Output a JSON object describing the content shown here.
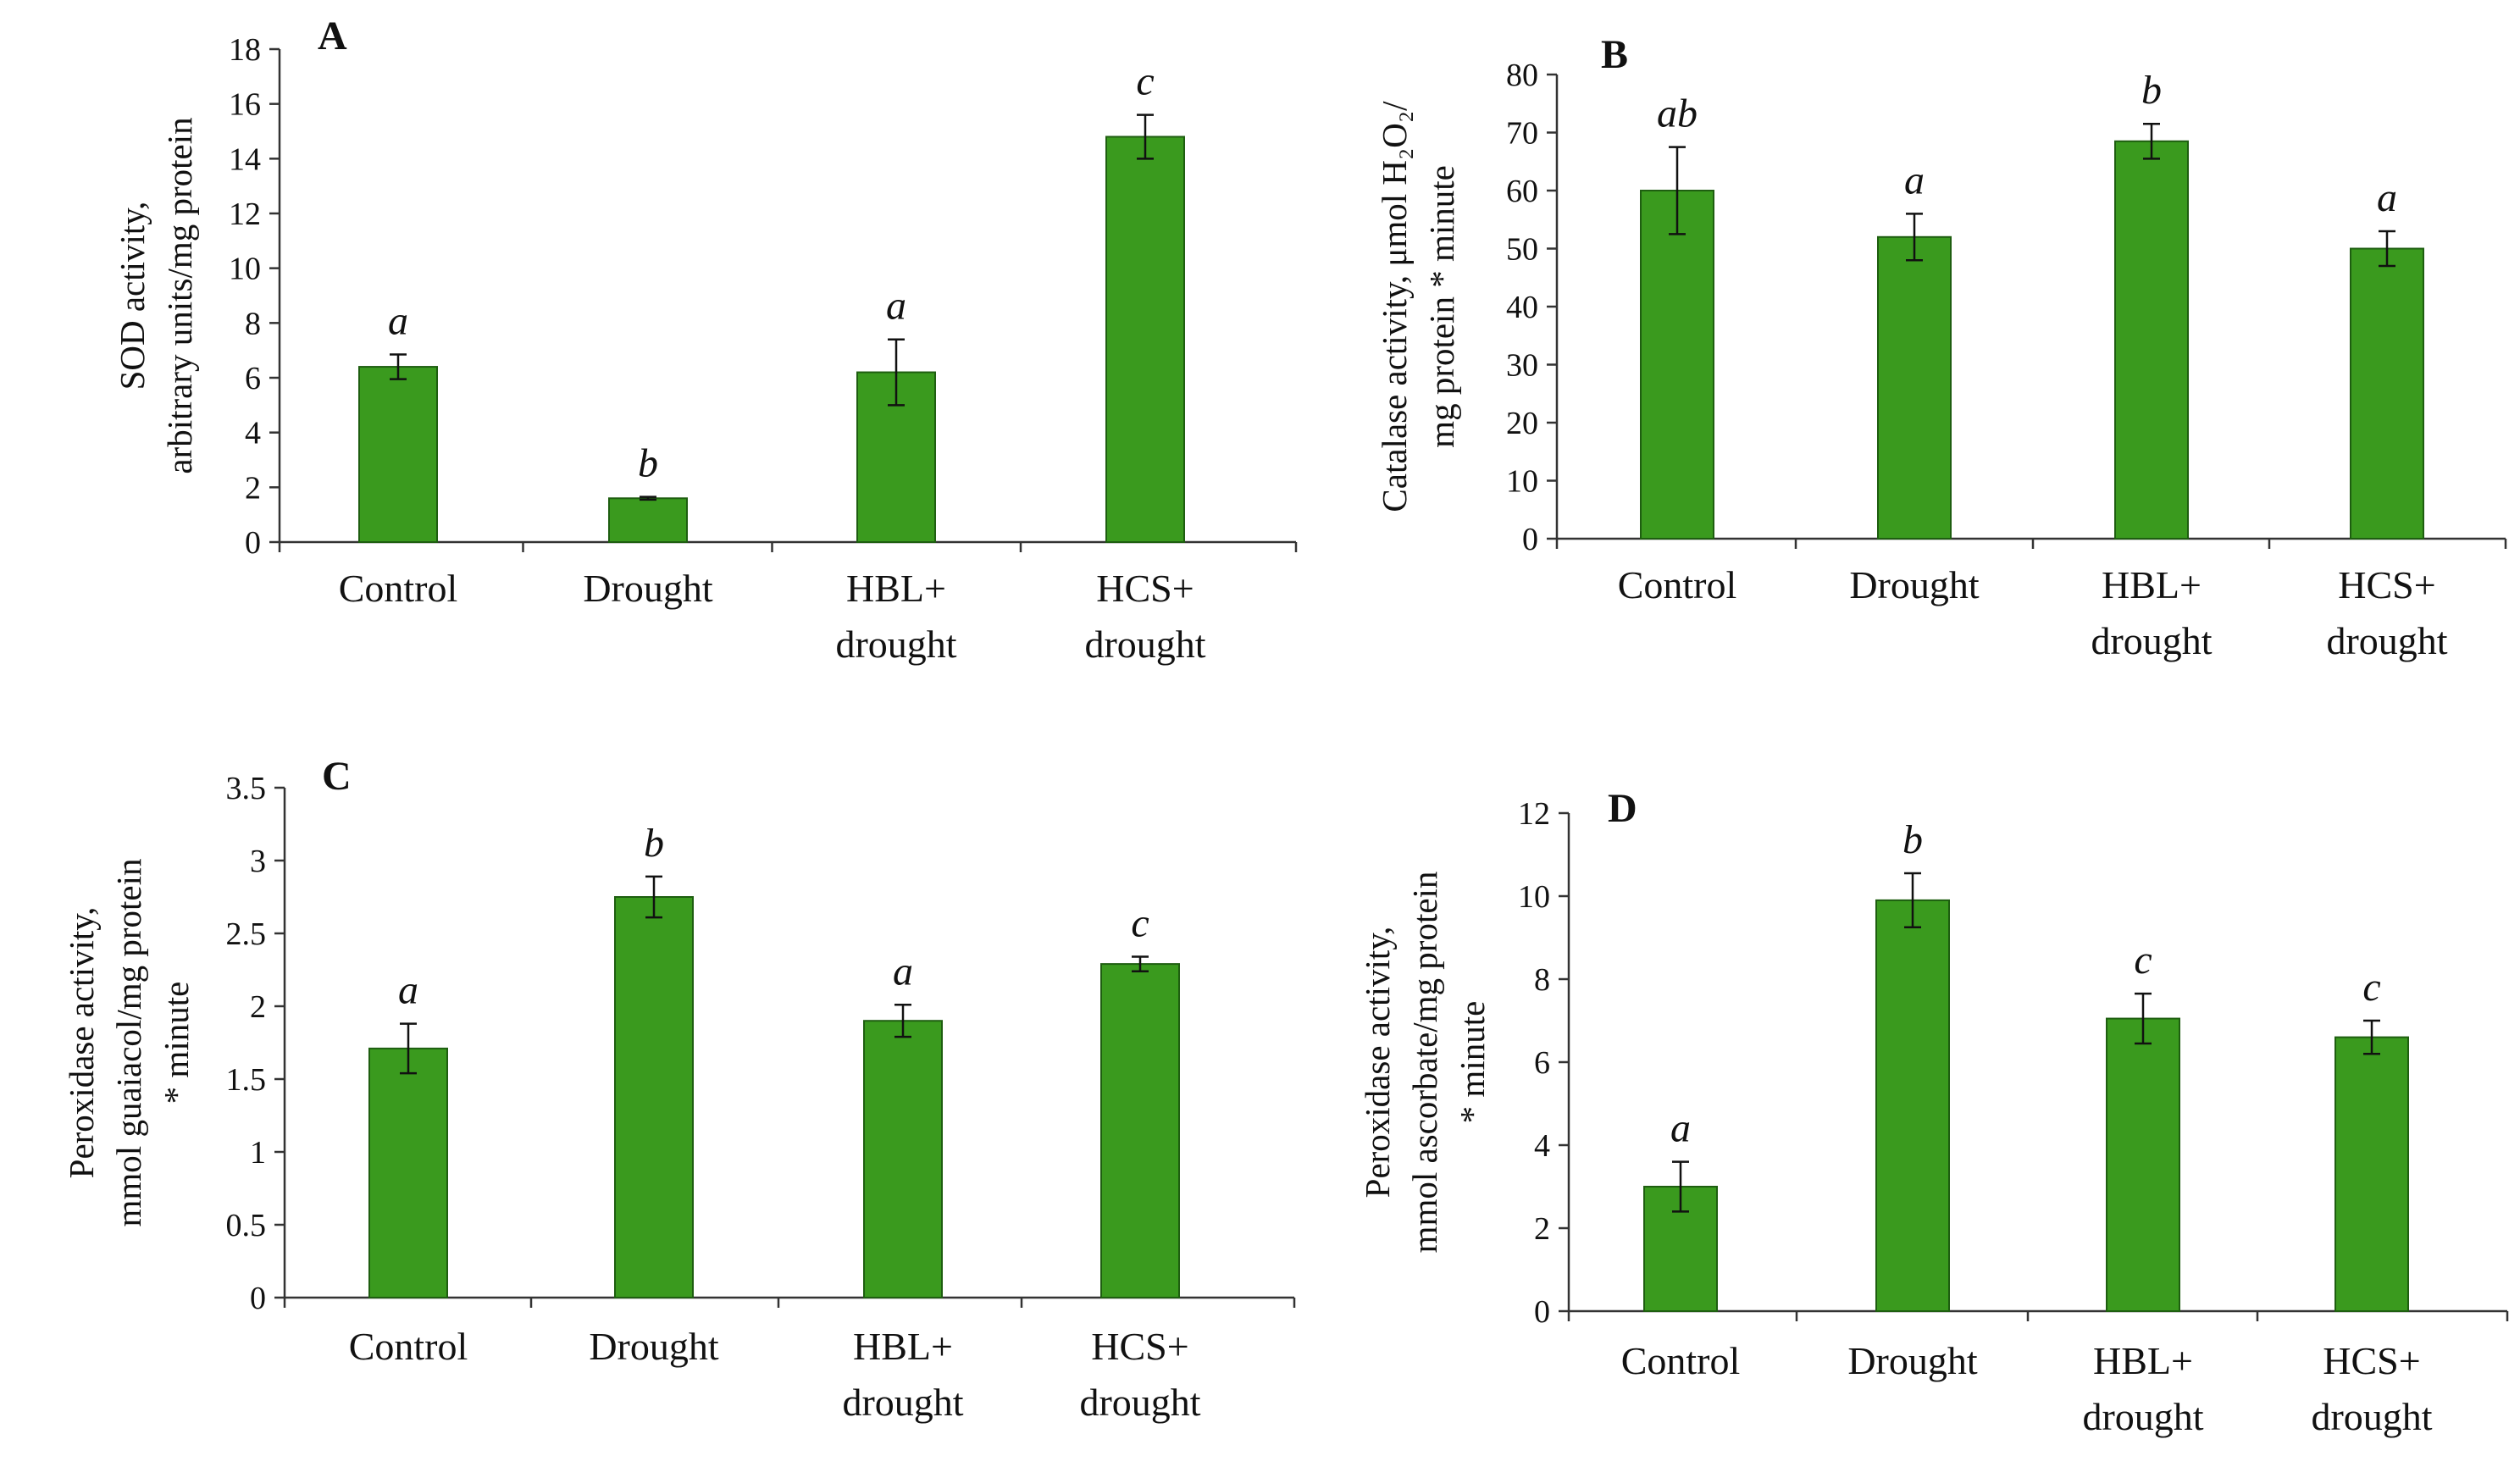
{
  "chart_data": [
    {
      "type": "bar",
      "panel": "A",
      "categories": [
        [
          "Control"
        ],
        [
          "Drought"
        ],
        [
          "HBL+",
          "drought"
        ],
        [
          "HCS+",
          "drought"
        ]
      ],
      "values": [
        6.4,
        1.6,
        6.2,
        14.8
      ],
      "errors": [
        0.45,
        0.05,
        1.2,
        0.8
      ],
      "significance": [
        "a",
        "b",
        "a",
        "c"
      ],
      "ylabel": [
        "SOD activity,",
        "arbitrary units/mg protein"
      ],
      "ylim": [
        0,
        18
      ],
      "yticks": [
        0,
        2,
        4,
        6,
        8,
        10,
        12,
        14,
        16,
        18
      ],
      "ytick_labels": [
        "0",
        "2",
        "4",
        "6",
        "8",
        "10",
        "12",
        "14",
        "16",
        "18"
      ],
      "color": "#3a9a1e"
    },
    {
      "type": "bar",
      "panel": "B",
      "categories": [
        [
          "Control"
        ],
        [
          "Drought"
        ],
        [
          "HBL+",
          "drought"
        ],
        [
          "HCS+",
          "drought"
        ]
      ],
      "values": [
        60,
        52,
        68.5,
        50
      ],
      "errors": [
        7.5,
        4,
        3,
        3
      ],
      "significance": [
        "ab",
        "a",
        "b",
        "a"
      ],
      "ylabel": [
        "Catalase activity, μmol H₂O₂/",
        "mg protein * minute"
      ],
      "ylim": [
        0,
        80
      ],
      "yticks": [
        0,
        10,
        20,
        30,
        40,
        50,
        60,
        70,
        80
      ],
      "ytick_labels": [
        "0",
        "10",
        "20",
        "30",
        "40",
        "50",
        "60",
        "70",
        "80"
      ],
      "color": "#3a9a1e"
    },
    {
      "type": "bar",
      "panel": "C",
      "categories": [
        [
          "Control"
        ],
        [
          "Drought"
        ],
        [
          "HBL+",
          "drought"
        ],
        [
          "HCS+",
          "drought"
        ]
      ],
      "values": [
        1.71,
        2.75,
        1.9,
        2.29
      ],
      "errors": [
        0.17,
        0.14,
        0.11,
        0.05
      ],
      "significance": [
        "a",
        "b",
        "a",
        "c"
      ],
      "ylabel": [
        "Peroxidase activity,",
        "mmol guaiacol/mg protein",
        "* minute"
      ],
      "ylim": [
        0,
        3.5
      ],
      "yticks": [
        0,
        0.5,
        1,
        1.5,
        2,
        2.5,
        3,
        3.5
      ],
      "ytick_labels": [
        "0",
        "0.5",
        "1",
        "1.5",
        "2",
        "2.5",
        "3",
        "3.5"
      ],
      "color": "#3a9a1e"
    },
    {
      "type": "bar",
      "panel": "D",
      "categories": [
        [
          "Control"
        ],
        [
          "Drought"
        ],
        [
          "HBL+",
          "drought"
        ],
        [
          "HCS+",
          "drought"
        ]
      ],
      "values": [
        3.0,
        9.9,
        7.05,
        6.6
      ],
      "errors": [
        0.6,
        0.65,
        0.6,
        0.4
      ],
      "significance": [
        "a",
        "b",
        "c",
        "c"
      ],
      "ylabel": [
        "Peroxidase activity,",
        "mmol ascorbate/mg protein",
        "* minute"
      ],
      "ylim": [
        0,
        12
      ],
      "yticks": [
        0,
        2,
        4,
        6,
        8,
        10,
        12
      ],
      "ytick_labels": [
        "0",
        "2",
        "4",
        "6",
        "8",
        "10",
        "12"
      ],
      "color": "#3a9a1e"
    }
  ]
}
